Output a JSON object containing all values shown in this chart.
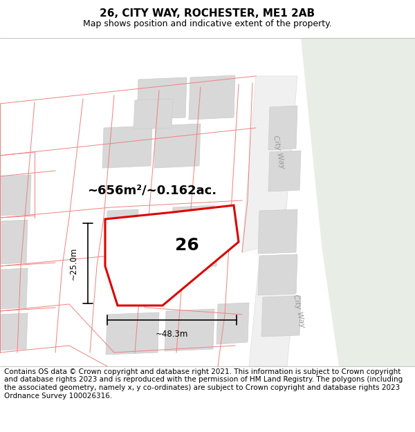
{
  "title": "26, CITY WAY, ROCHESTER, ME1 2AB",
  "subtitle": "Map shows position and indicative extent of the property.",
  "copyright": "Contains OS data © Crown copyright and database right 2021. This information is subject to Crown copyright and database rights 2023 and is reproduced with the permission of HM Land Registry. The polygons (including the associated geometry, namely x, y co-ordinates) are subject to Crown copyright and database rights 2023 Ordnance Survey 100026316.",
  "area_label": "~656m²/~0.162ac.",
  "label_26": "26",
  "dim_width": "~48.3m",
  "dim_height": "~25.0m",
  "map_bg": "#ffffff",
  "green_fill": "#e8ede5",
  "building_fill": "#d8d8d8",
  "building_edge": "#cccccc",
  "plot_line_color": "#dd0000",
  "plot_fill_color": "#ffffff",
  "pink_line_color": "#f08080",
  "title_fontsize": 11,
  "subtitle_fontsize": 9,
  "copyright_fontsize": 7.5
}
